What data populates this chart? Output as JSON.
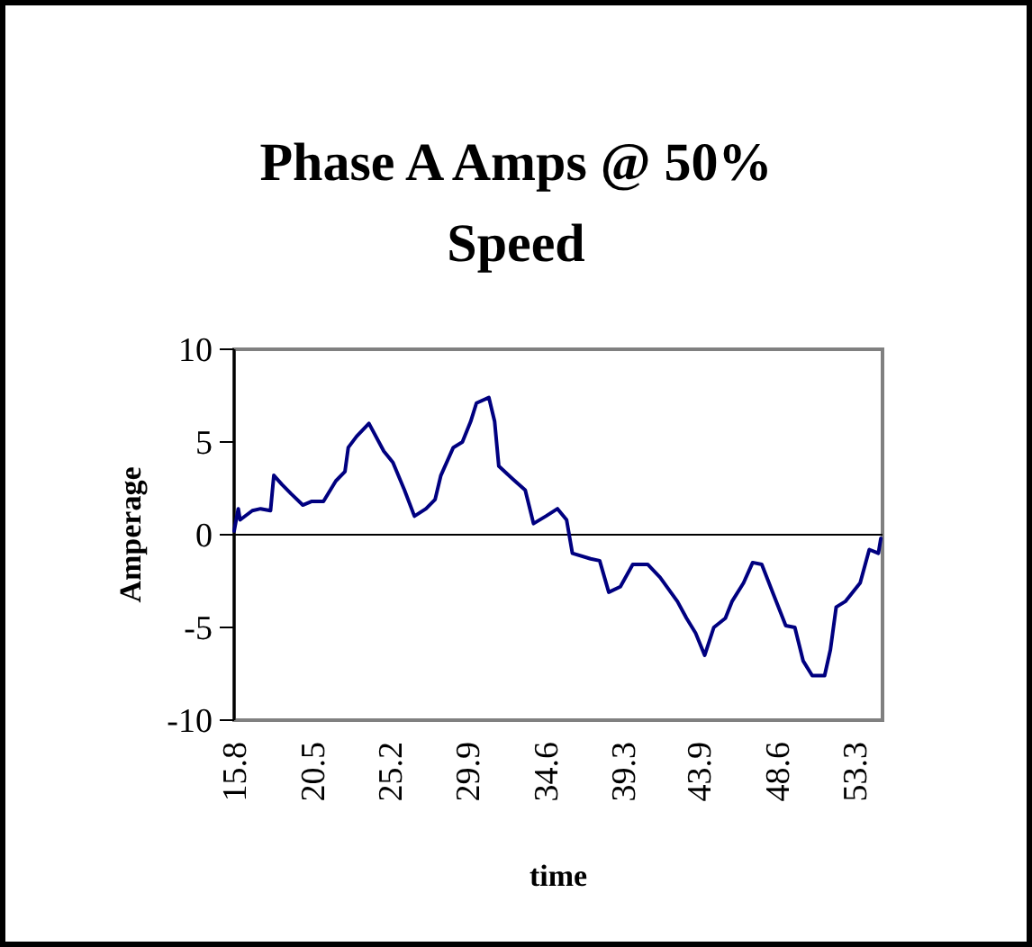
{
  "chart_data": {
    "type": "line",
    "title": "Phase A Amps @ 50% Speed",
    "xlabel": "time",
    "ylabel": "Amperage",
    "x": [
      15.8,
      16.05,
      16.16,
      16.9,
      17.4,
      18.0,
      18.2,
      18.7,
      19.25,
      19.95,
      20.5,
      21.2,
      21.95,
      22.5,
      22.7,
      23.2,
      23.95,
      24.85,
      25.4,
      26.1,
      26.7,
      27.4,
      27.95,
      28.3,
      29.05,
      29.6,
      30.1,
      30.45,
      31.2,
      31.55,
      31.8,
      32.65,
      33.4,
      33.9,
      34.65,
      35.35,
      35.9,
      36.25,
      37.35,
      37.9,
      38.45,
      39.15,
      39.9,
      40.8,
      41.55,
      42.6,
      43.15,
      43.7,
      44.25,
      44.8,
      45.5,
      45.9,
      46.6,
      47.15,
      47.7,
      48.4,
      49.15,
      49.7,
      50.2,
      50.75,
      51.5,
      51.85,
      52.2,
      52.75,
      53.65,
      54.2,
      54.75,
      54.9
    ],
    "series": [
      {
        "color": "#000080",
        "values": [
          0.2,
          1.4,
          0.8,
          1.3,
          1.4,
          1.3,
          3.2,
          2.7,
          2.2,
          1.6,
          1.8,
          1.8,
          2.9,
          3.4,
          4.7,
          5.3,
          6.0,
          4.5,
          3.9,
          2.4,
          1.0,
          1.4,
          1.9,
          3.2,
          4.7,
          5.0,
          6.1,
          7.1,
          7.4,
          6.1,
          3.7,
          3.0,
          2.4,
          0.6,
          1.0,
          1.4,
          0.8,
          -1.0,
          -1.3,
          -1.4,
          -3.1,
          -2.8,
          -1.6,
          -1.6,
          -2.3,
          -3.6,
          -4.5,
          -5.3,
          -6.5,
          -5.0,
          -4.5,
          -3.6,
          -2.6,
          -1.5,
          -1.6,
          -3.2,
          -4.9,
          -5.0,
          -6.8,
          -7.6,
          -7.6,
          -6.2,
          -3.9,
          -3.6,
          -2.6,
          -0.8,
          -1.0,
          -0.2
        ]
      }
    ],
    "xlim": [
      15.8,
      55
    ],
    "xticks": [
      15.8,
      20.5,
      25.2,
      29.9,
      34.6,
      39.3,
      43.9,
      48.6,
      53.3
    ],
    "ylim": [
      -10,
      10
    ],
    "yticks": [
      -10,
      -5,
      0,
      5,
      10
    ],
    "line_style": "solid",
    "marker": "none"
  }
}
